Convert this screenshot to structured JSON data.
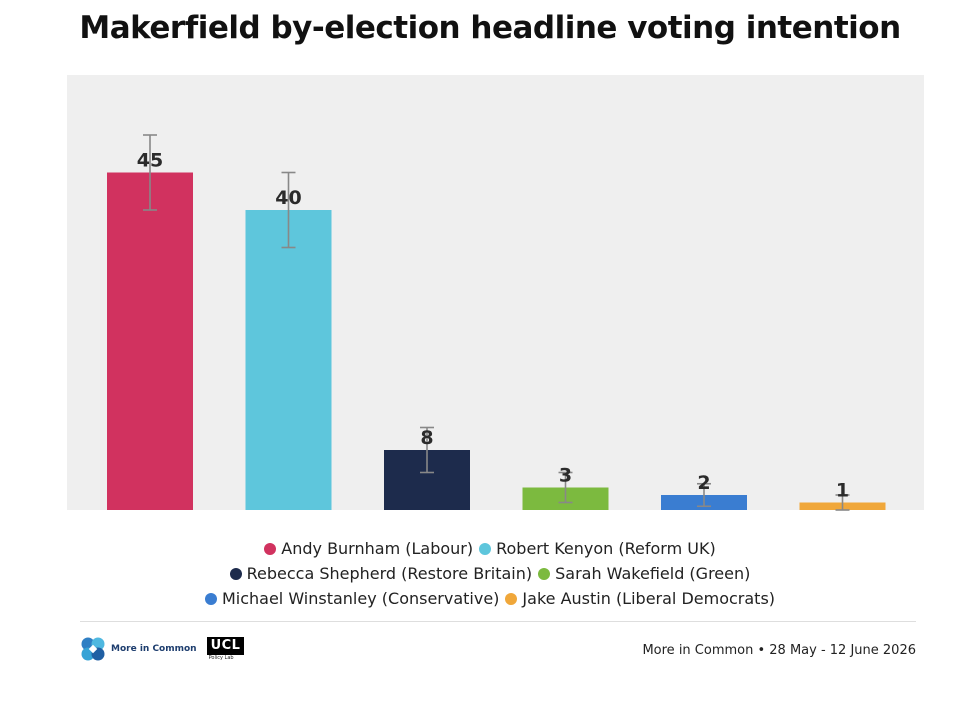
{
  "title": "Makerfield by-election headline voting intention",
  "chart_data": {
    "type": "bar",
    "title": "Makerfield by-election headline voting intention",
    "xlabel": "",
    "ylabel": "",
    "ylim": [
      0,
      50
    ],
    "grid": false,
    "legend_position": "bottom",
    "categories": [
      "Andy Burnham (Labour)",
      "Robert Kenyon (Reform UK)",
      "Rebecca Shepherd (Restore Britain)",
      "Sarah Wakefield (Green)",
      "Michael Winstanley (Conservative)",
      "Jake Austin (Liberal Democrats)"
    ],
    "values": [
      45,
      40,
      8,
      3,
      2,
      1
    ],
    "value_labels": [
      "45",
      "40",
      "8",
      "3",
      "2",
      "1"
    ],
    "error_bars": [
      {
        "low": 40,
        "high": 50
      },
      {
        "low": 35,
        "high": 45
      },
      {
        "low": 5,
        "high": 11
      },
      {
        "low": 1,
        "high": 5
      },
      {
        "low": 0.5,
        "high": 3.5
      },
      {
        "low": 0,
        "high": 2
      }
    ],
    "colors": [
      "#d1325f",
      "#5ec6dc",
      "#1d2b4c",
      "#7cba3f",
      "#3a7dd1",
      "#f0a73a"
    ]
  },
  "legend": {
    "rows": [
      [
        {
          "label": "Andy Burnham (Labour)",
          "color": "#d1325f"
        },
        {
          "label": "Robert Kenyon (Reform UK)",
          "color": "#5ec6dc"
        }
      ],
      [
        {
          "label": "Rebecca Shepherd (Restore Britain)",
          "color": "#1d2b4c"
        },
        {
          "label": "Sarah Wakefield (Green)",
          "color": "#7cba3f"
        }
      ],
      [
        {
          "label": "Michael Winstanley (Conservative)",
          "color": "#3a7dd1"
        },
        {
          "label": "Jake Austin (Liberal Democrats)",
          "color": "#f0a73a"
        }
      ]
    ]
  },
  "footer": {
    "logo_more_in_common": "More in Common",
    "logo_ucl": "UCL",
    "logo_ucl_sub": "Policy Lab",
    "source": "More in Common • 28 May - 12 June 2026"
  }
}
